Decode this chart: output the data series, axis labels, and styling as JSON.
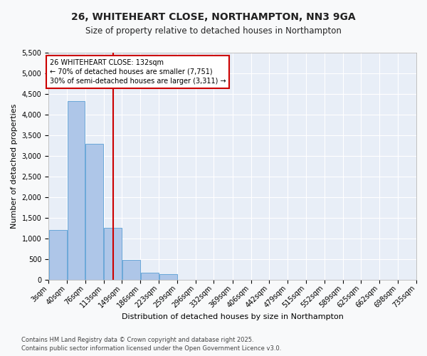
{
  "title": "26, WHITEHEART CLOSE, NORTHAMPTON, NN3 9GA",
  "subtitle": "Size of property relative to detached houses in Northampton",
  "xlabel": "Distribution of detached houses by size in Northampton",
  "ylabel": "Number of detached properties",
  "footnote1": "Contains HM Land Registry data © Crown copyright and database right 2025.",
  "footnote2": "Contains public sector information licensed under the Open Government Licence v3.0.",
  "annotation_line1": "26 WHITEHEART CLOSE: 132sqm",
  "annotation_line2": "← 70% of detached houses are smaller (7,751)",
  "annotation_line3": "30% of semi-detached houses are larger (3,311) →",
  "bins": [
    3,
    40,
    76,
    113,
    149,
    186,
    223,
    259,
    296,
    332,
    369,
    406,
    442,
    479,
    515,
    552,
    589,
    625,
    662,
    698,
    735
  ],
  "bar_values": [
    1215,
    4335,
    3290,
    1260,
    490,
    175,
    135,
    0,
    0,
    0,
    0,
    0,
    0,
    0,
    0,
    0,
    0,
    0,
    0,
    0
  ],
  "bar_color": "#aec6e8",
  "bar_edge_color": "#5a9fd4",
  "vline_x": 132,
  "vline_color": "#cc0000",
  "annotation_box_color": "#cc0000",
  "ylim": [
    0,
    5500
  ],
  "yticks": [
    0,
    500,
    1000,
    1500,
    2000,
    2500,
    3000,
    3500,
    4000,
    4500,
    5000,
    5500
  ],
  "bg_color": "#e8eef7",
  "grid_color": "#ffffff",
  "fig_bg_color": "#f8f9fa",
  "title_fontsize": 10,
  "subtitle_fontsize": 8.5,
  "axis_label_fontsize": 8,
  "tick_fontsize": 7,
  "annotation_fontsize": 7,
  "footnote_fontsize": 6
}
